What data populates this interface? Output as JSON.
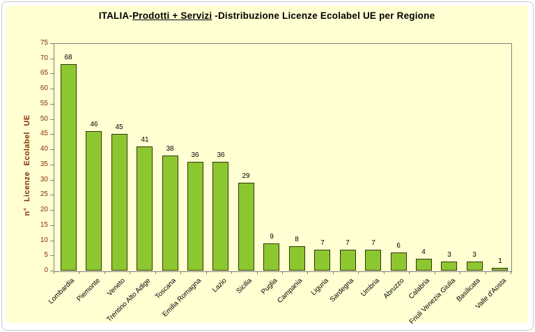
{
  "frame": {
    "surface_color": "#FFFFD2",
    "border_color": "#C9C9C9"
  },
  "title": {
    "prefix": "ITALIA-",
    "underlined": "Prodotti + Servizi",
    "suffix": " -Distribuzione Licenze Ecolabel UE per Regione"
  },
  "chart_data": {
    "type": "bar",
    "title": "ITALIA-Prodotti + Servizi -Distribuzione Licenze Ecolabel UE per Regione",
    "categories": [
      "Lombardia",
      "Piemonte",
      "Veneto",
      "Trentino Alto Adige",
      "Toscana",
      "Emilia Romagna",
      "Lazio",
      "Sicilia",
      "Puglia",
      "Campania",
      "Liguria",
      "Sardegna",
      "Umbria",
      "Abruzzo",
      "Calabria",
      "Friuli Venezia Giulia",
      "Basilicata",
      "Valle d'Aosta"
    ],
    "values": [
      68,
      46,
      45,
      41,
      38,
      36,
      36,
      29,
      9,
      8,
      7,
      7,
      7,
      6,
      4,
      3,
      3,
      1
    ],
    "xlabel": "",
    "ylabel": "n° Licenze Ecolabel UE",
    "ylim": [
      0,
      75
    ],
    "ytick_step": 5,
    "grid": false,
    "legend": "none",
    "bar_color": "#8DC72F",
    "bar_border_color": "#333311",
    "value_label_color": "#000000",
    "ytick_label_color": "#7F3300",
    "ylabel_color": "#7F3300",
    "xtick_label_color": "#000000",
    "axis_color": "#7F7F7F"
  }
}
